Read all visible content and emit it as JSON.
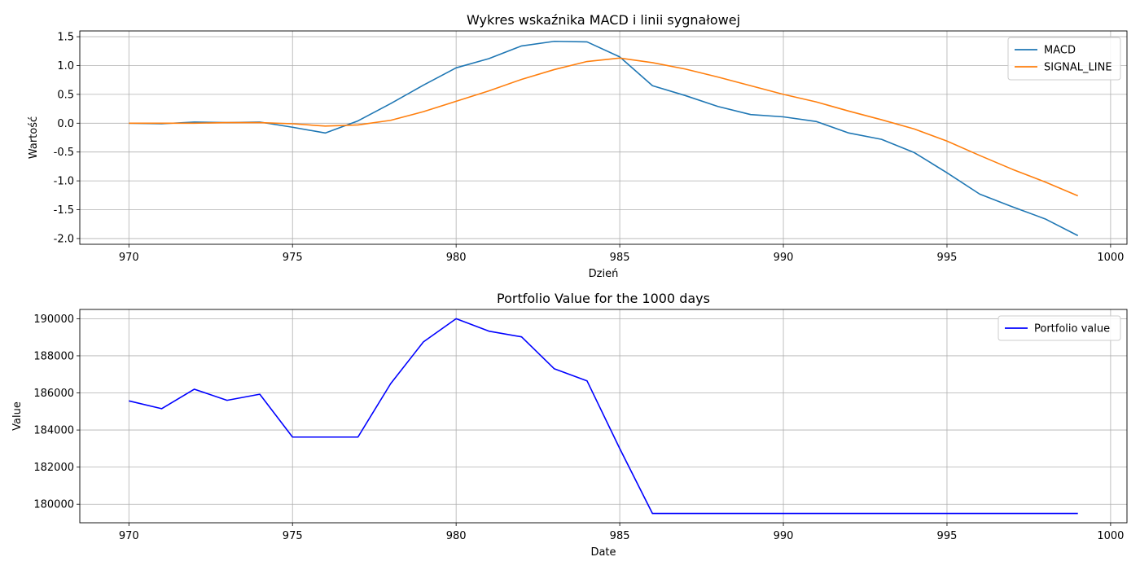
{
  "chart_data": [
    {
      "type": "line",
      "title": "Wykres wskaźnika MACD i linii sygnałowej",
      "xlabel": "Dzień",
      "ylabel": "Wartość",
      "xlim": [
        968.5,
        1000.5
      ],
      "ylim": [
        -2.1,
        1.6
      ],
      "x_ticks": [
        970,
        975,
        980,
        985,
        990,
        995,
        1000
      ],
      "y_ticks": [
        -2.0,
        -1.5,
        -1.0,
        -0.5,
        0.0,
        0.5,
        1.0,
        1.5
      ],
      "grid": true,
      "legend_position": "top-right",
      "x": [
        970,
        971,
        972,
        973,
        974,
        975,
        976,
        977,
        978,
        979,
        980,
        981,
        982,
        983,
        984,
        985,
        986,
        987,
        988,
        989,
        990,
        991,
        992,
        993,
        994,
        995,
        996,
        997,
        998,
        999
      ],
      "series": [
        {
          "name": "MACD",
          "color": "#1f77b4",
          "values": [
            0.0,
            -0.01,
            0.02,
            0.01,
            0.02,
            -0.07,
            -0.17,
            0.04,
            0.34,
            0.66,
            0.96,
            1.12,
            1.34,
            1.42,
            1.41,
            1.15,
            0.65,
            0.48,
            0.29,
            0.15,
            0.11,
            0.03,
            -0.17,
            -0.28,
            -0.51,
            -0.86,
            -1.23,
            -1.45,
            -1.66,
            -1.95
          ]
        },
        {
          "name": "SIGNAL_LINE",
          "color": "#ff7f0e",
          "values": [
            0.0,
            0.0,
            0.0,
            0.01,
            0.01,
            -0.01,
            -0.05,
            -0.03,
            0.05,
            0.2,
            0.38,
            0.56,
            0.76,
            0.93,
            1.07,
            1.13,
            1.05,
            0.94,
            0.8,
            0.65,
            0.5,
            0.37,
            0.21,
            0.06,
            -0.1,
            -0.31,
            -0.56,
            -0.8,
            -1.02,
            -1.26
          ]
        }
      ]
    },
    {
      "type": "line",
      "title": "Portfolio Value for the 1000 days",
      "xlabel": "Date",
      "ylabel": "Value",
      "xlim": [
        968.5,
        1000.5
      ],
      "ylim": [
        179000,
        190500
      ],
      "x_ticks": [
        970,
        975,
        980,
        985,
        990,
        995,
        1000
      ],
      "y_ticks": [
        180000,
        182000,
        184000,
        186000,
        188000,
        190000
      ],
      "grid": true,
      "legend_position": "top-right",
      "x": [
        970,
        971,
        972,
        973,
        974,
        975,
        976,
        977,
        978,
        979,
        980,
        981,
        982,
        983,
        984,
        985,
        986,
        987,
        988,
        989,
        990,
        991,
        992,
        993,
        994,
        995,
        996,
        997,
        998,
        999
      ],
      "series": [
        {
          "name": "Portfolio value",
          "color": "#0000ff",
          "values": [
            185570,
            185150,
            186200,
            185600,
            185930,
            183620,
            183620,
            183620,
            186500,
            188750,
            190000,
            189330,
            189020,
            187300,
            186650,
            183000,
            179500,
            179500,
            179500,
            179500,
            179500,
            179500,
            179500,
            179500,
            179500,
            179500,
            179500,
            179500,
            179500,
            179500
          ]
        }
      ]
    }
  ]
}
